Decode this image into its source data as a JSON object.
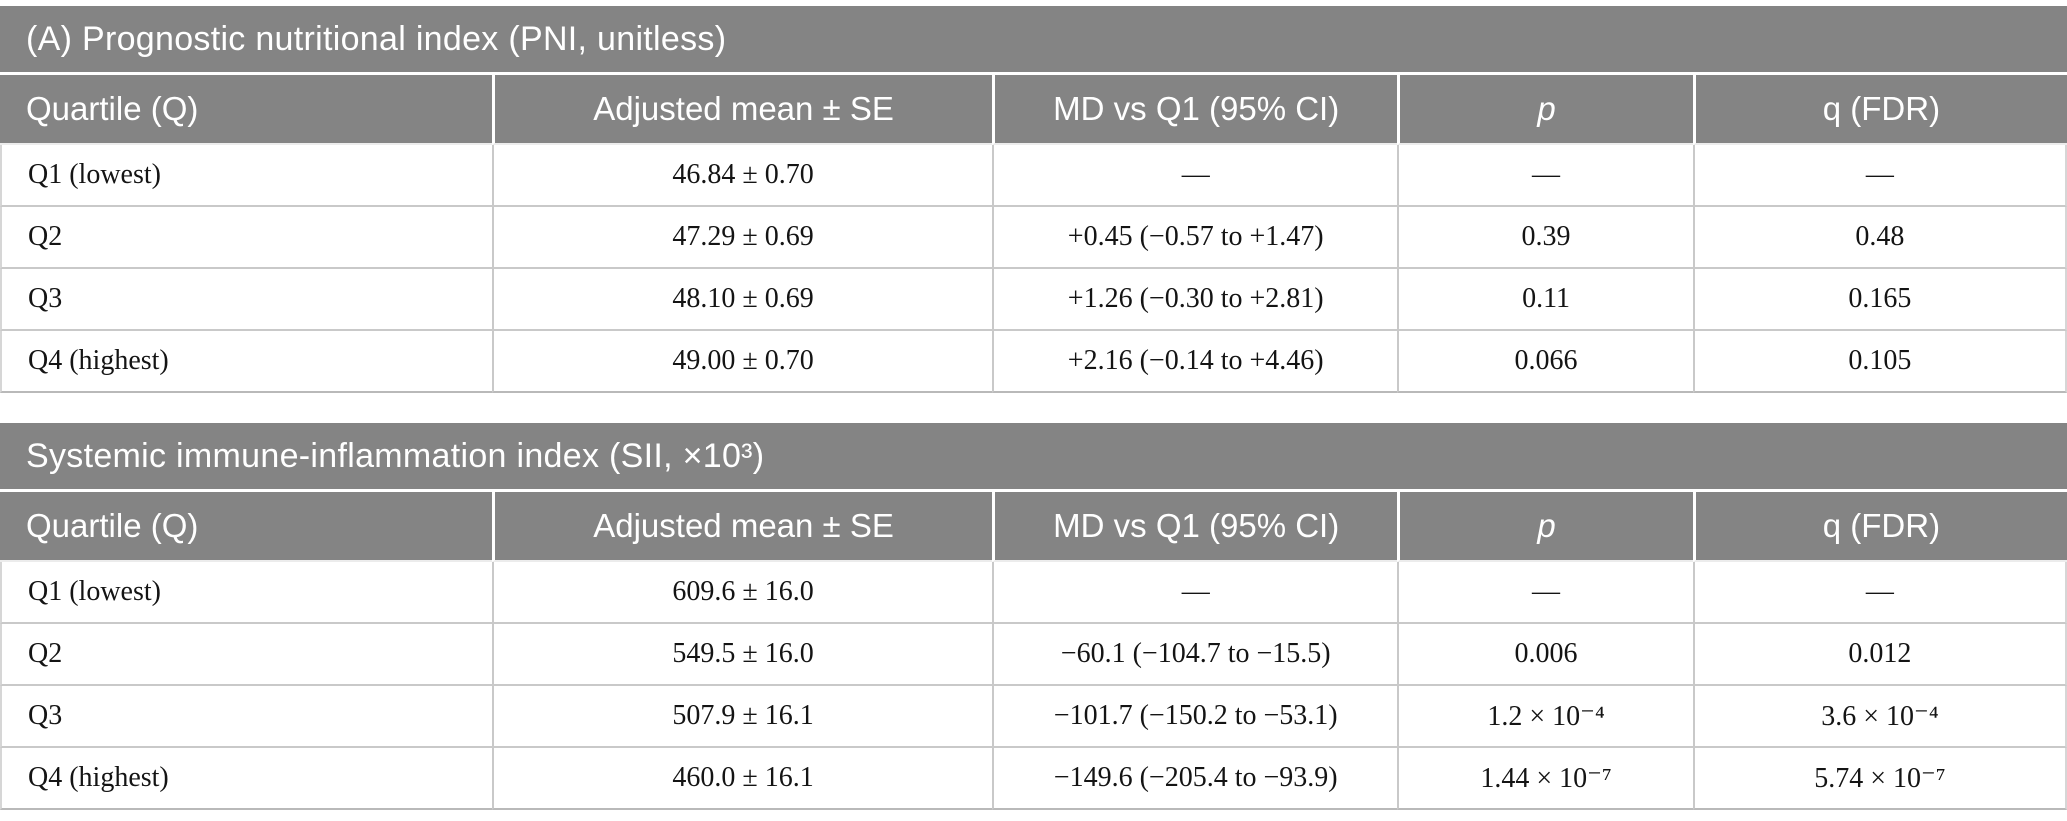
{
  "colors": {
    "band_bg": "#848484",
    "band_text": "#ffffff",
    "grid_line": "#c9c9c9",
    "data_text": "#141414"
  },
  "tables": [
    {
      "title": "(A) Prognostic nutritional index (PNI, unitless)",
      "columns": [
        "Quartile (Q)",
        "Adjusted mean ± SE",
        "MD vs Q1 (95% CI)",
        "p",
        "q (FDR)"
      ],
      "rows": [
        [
          "Q1 (lowest)",
          "46.84 ± 0.70",
          "—",
          "—",
          "—"
        ],
        [
          "Q2",
          "47.29 ± 0.69",
          "+0.45 (−0.57 to +1.47)",
          "0.39",
          "0.48"
        ],
        [
          "Q3",
          "48.10 ± 0.69",
          "+1.26 (−0.30 to +2.81)",
          "0.11",
          "0.165"
        ],
        [
          "Q4 (highest)",
          "49.00 ± 0.70",
          "+2.16 (−0.14 to +4.46)",
          "0.066",
          "0.105"
        ]
      ]
    },
    {
      "title": "Systemic immune-inflammation index (SII, ×10³)",
      "columns": [
        "Quartile (Q)",
        "Adjusted mean ± SE",
        "MD vs Q1 (95% CI)",
        "p",
        "q (FDR)"
      ],
      "rows": [
        [
          "Q1 (lowest)",
          "609.6 ± 16.0",
          "—",
          "—",
          "—"
        ],
        [
          "Q2",
          "549.5 ± 16.0",
          "−60.1 (−104.7 to −15.5)",
          "0.006",
          "0.012"
        ],
        [
          "Q3",
          "507.9 ± 16.1",
          "−101.7 (−150.2 to −53.1)",
          "1.2 × 10⁻⁴",
          "3.6 × 10⁻⁴"
        ],
        [
          "Q4 (highest)",
          "460.0 ± 16.1",
          "−149.6 (−205.4 to −93.9)",
          "1.44 × 10⁻⁷",
          "5.74 × 10⁻⁷"
        ]
      ]
    }
  ]
}
